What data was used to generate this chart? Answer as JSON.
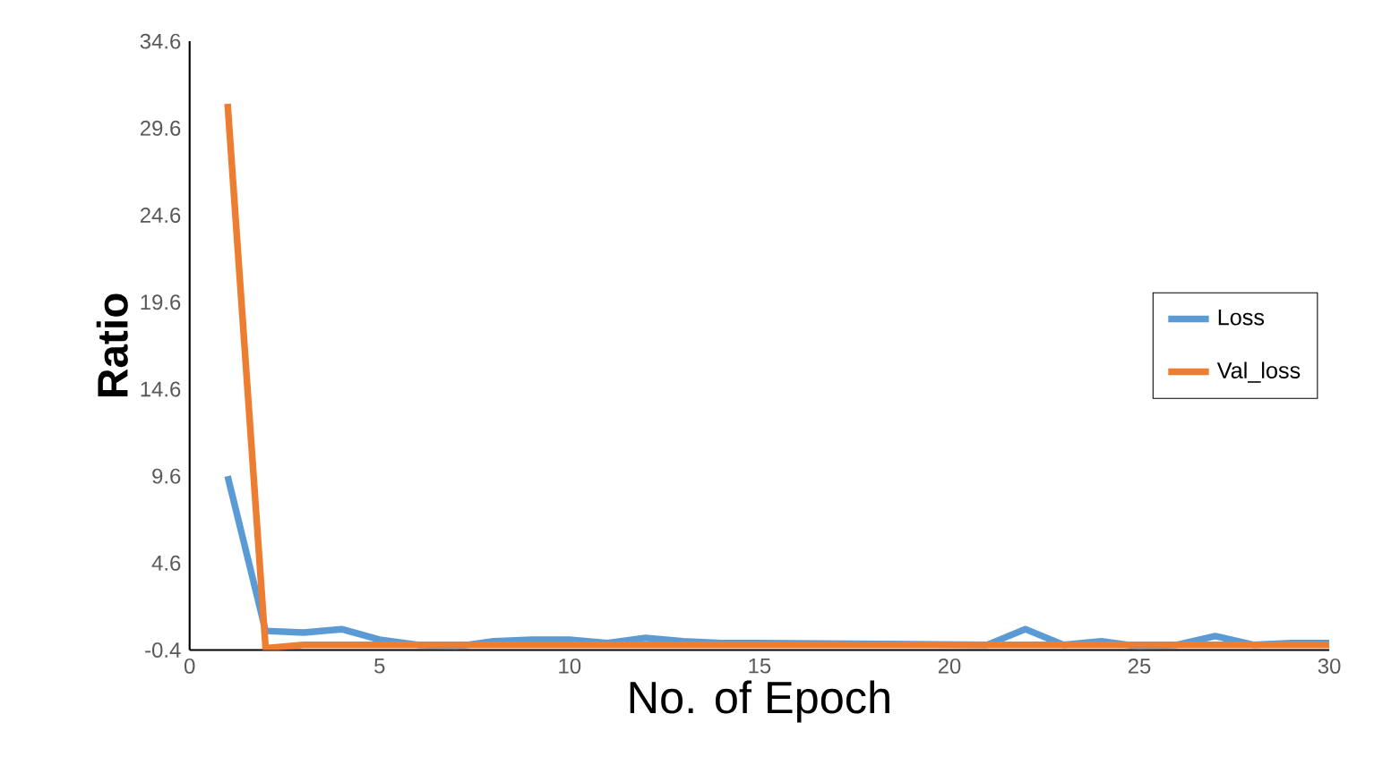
{
  "chart_data": {
    "type": "line",
    "xlabel": "No. of Epoch",
    "ylabel": "Ratio",
    "xlim": [
      0,
      30
    ],
    "xticks": [
      0,
      5,
      10,
      15,
      20,
      25,
      30
    ],
    "ylim": [
      -0.4,
      34.6
    ],
    "yticks": [
      -0.4,
      4.6,
      9.6,
      14.6,
      19.6,
      24.6,
      29.6,
      34.6
    ],
    "x": [
      1,
      2,
      3,
      4,
      5,
      6,
      7,
      8,
      9,
      10,
      11,
      12,
      13,
      14,
      15,
      16,
      17,
      18,
      19,
      20,
      21,
      22,
      23,
      24,
      25,
      26,
      27,
      28,
      29,
      30
    ],
    "series": [
      {
        "name": "Loss",
        "color": "#5b9bd5",
        "values": [
          9.6,
          0.7,
          0.6,
          0.8,
          0.2,
          -0.1,
          -0.2,
          0.1,
          0.2,
          0.2,
          0.0,
          0.3,
          0.1,
          0.0,
          0.0,
          null,
          null,
          null,
          null,
          null,
          -0.1,
          0.8,
          -0.1,
          0.1,
          -0.2,
          -0.1,
          0.4,
          -0.1,
          0.0,
          0.0
        ]
      },
      {
        "name": "Val_loss",
        "color": "#ed7d31",
        "values": [
          31.0,
          -0.3,
          -0.1,
          -0.1,
          -0.1,
          -0.1,
          -0.1,
          -0.1,
          -0.1,
          -0.1,
          -0.1,
          -0.1,
          -0.1,
          -0.1,
          -0.1,
          -0.1,
          -0.1,
          -0.1,
          -0.1,
          -0.1,
          -0.1,
          -0.1,
          -0.1,
          -0.1,
          -0.1,
          -0.1,
          -0.1,
          -0.1,
          -0.1,
          -0.1
        ]
      }
    ],
    "legend": "right",
    "grid": false
  }
}
